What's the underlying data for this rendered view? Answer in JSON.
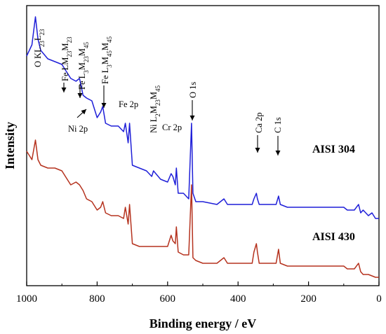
{
  "chart_data": {
    "type": "line",
    "title": "",
    "xlabel": "Binding energy / eV",
    "ylabel": "Intensity",
    "xlim": [
      1000,
      0
    ],
    "x_reversed": true,
    "xticks": [
      1000,
      800,
      600,
      400,
      200,
      0
    ],
    "y_ticks_shown": false,
    "grid": false,
    "series": [
      {
        "name": "AISI 304",
        "color": "#1f1fd8",
        "x": [
          1000,
          985,
          975,
          968,
          960,
          940,
          920,
          900,
          890,
          875,
          860,
          850,
          840,
          830,
          815,
          800,
          790,
          784,
          776,
          760,
          740,
          725,
          720,
          712,
          708,
          700,
          680,
          660,
          645,
          640,
          620,
          600,
          590,
          585,
          578,
          575,
          570,
          555,
          540,
          532,
          528,
          520,
          500,
          460,
          440,
          430,
          400,
          360,
          355,
          348,
          345,
          340,
          320,
          300,
          292,
          285,
          280,
          260,
          220,
          160,
          100,
          90,
          70,
          58,
          52,
          45,
          30,
          20,
          10,
          0
        ],
        "y": [
          0.82,
          0.86,
          0.96,
          0.88,
          0.84,
          0.81,
          0.8,
          0.79,
          0.77,
          0.74,
          0.73,
          0.74,
          0.68,
          0.67,
          0.66,
          0.6,
          0.62,
          0.64,
          0.58,
          0.57,
          0.57,
          0.55,
          0.58,
          0.51,
          0.58,
          0.43,
          0.42,
          0.41,
          0.39,
          0.41,
          0.38,
          0.37,
          0.4,
          0.39,
          0.36,
          0.42,
          0.33,
          0.33,
          0.31,
          0.58,
          0.33,
          0.3,
          0.3,
          0.29,
          0.31,
          0.29,
          0.29,
          0.29,
          0.31,
          0.33,
          0.31,
          0.29,
          0.29,
          0.29,
          0.29,
          0.32,
          0.29,
          0.28,
          0.28,
          0.28,
          0.28,
          0.27,
          0.27,
          0.29,
          0.26,
          0.27,
          0.25,
          0.26,
          0.24,
          0.24
        ]
      },
      {
        "name": "AISI 430",
        "color": "#b5321e",
        "x": [
          1000,
          985,
          975,
          968,
          960,
          940,
          920,
          900,
          890,
          875,
          860,
          850,
          840,
          830,
          815,
          800,
          790,
          784,
          776,
          760,
          740,
          725,
          720,
          712,
          708,
          700,
          680,
          660,
          645,
          640,
          620,
          600,
          590,
          585,
          578,
          575,
          570,
          555,
          540,
          532,
          528,
          520,
          500,
          460,
          440,
          430,
          400,
          360,
          355,
          348,
          345,
          340,
          320,
          300,
          292,
          285,
          280,
          260,
          220,
          160,
          100,
          90,
          70,
          58,
          52,
          45,
          30,
          20,
          10,
          0
        ],
        "y": [
          0.48,
          0.45,
          0.52,
          0.45,
          0.43,
          0.42,
          0.42,
          0.41,
          0.39,
          0.36,
          0.37,
          0.36,
          0.34,
          0.31,
          0.3,
          0.27,
          0.28,
          0.3,
          0.26,
          0.25,
          0.25,
          0.24,
          0.28,
          0.22,
          0.29,
          0.15,
          0.14,
          0.14,
          0.14,
          0.14,
          0.14,
          0.14,
          0.18,
          0.16,
          0.15,
          0.21,
          0.12,
          0.11,
          0.11,
          0.36,
          0.1,
          0.09,
          0.08,
          0.08,
          0.1,
          0.08,
          0.08,
          0.08,
          0.12,
          0.15,
          0.12,
          0.08,
          0.08,
          0.08,
          0.08,
          0.13,
          0.08,
          0.07,
          0.07,
          0.07,
          0.07,
          0.06,
          0.06,
          0.08,
          0.05,
          0.04,
          0.04,
          0.035,
          0.03,
          0.03
        ]
      }
    ],
    "annotations": [
      {
        "label": "O KL23L23",
        "parts": [
          [
            "O KL",
            ""
          ],
          [
            "23",
            "sub"
          ],
          [
            "L",
            ""
          ],
          [
            "23",
            "sub"
          ]
        ],
        "x": 975,
        "arrow": false
      },
      {
        "label": "Fe LM23M23",
        "parts": [
          [
            "Fe LM",
            ""
          ],
          [
            "23",
            "sub"
          ],
          [
            "M",
            ""
          ],
          [
            "23",
            "sub"
          ]
        ],
        "x": 895,
        "arrow": true
      },
      {
        "label": "Fe L3M23M45",
        "parts": [
          [
            "Fe L",
            ""
          ],
          [
            "3",
            "sub"
          ],
          [
            "M",
            ""
          ],
          [
            "23",
            "sub"
          ],
          [
            "M",
            ""
          ],
          [
            "45",
            "sub"
          ]
        ],
        "x": 850,
        "arrow": true
      },
      {
        "label": "Fe L3M45M45",
        "parts": [
          [
            "Fe L",
            ""
          ],
          [
            "3",
            "sub"
          ],
          [
            "M",
            ""
          ],
          [
            "45",
            "sub"
          ],
          [
            "M",
            ""
          ],
          [
            "45",
            "sub"
          ]
        ],
        "x": 784,
        "arrow": true
      },
      {
        "label": "Ni 2p",
        "parts": [
          [
            "Ni 2p",
            ""
          ]
        ],
        "x": 855,
        "arrow": true
      },
      {
        "label": "Fe 2p",
        "parts": [
          [
            "Fe 2p",
            ""
          ]
        ],
        "x": 710,
        "arrow": false
      },
      {
        "label": "Ni L2M23M45",
        "parts": [
          [
            "Ni L",
            ""
          ],
          [
            "2",
            "sub"
          ],
          [
            "M",
            ""
          ],
          [
            "23",
            "sub"
          ],
          [
            "M",
            ""
          ],
          [
            "45",
            "sub"
          ]
        ],
        "x": 642,
        "arrow": false
      },
      {
        "label": "Cr 2p",
        "parts": [
          [
            "Cr 2p",
            ""
          ]
        ],
        "x": 576,
        "arrow": false
      },
      {
        "label": "O 1s",
        "parts": [
          [
            "O 1s",
            ""
          ]
        ],
        "x": 532,
        "arrow": true
      },
      {
        "label": "Ca 2p",
        "parts": [
          [
            "Ca 2p",
            ""
          ]
        ],
        "x": 348,
        "arrow": true
      },
      {
        "label": "C 1s",
        "parts": [
          [
            "C 1s",
            ""
          ]
        ],
        "x": 285,
        "arrow": true
      }
    ]
  }
}
